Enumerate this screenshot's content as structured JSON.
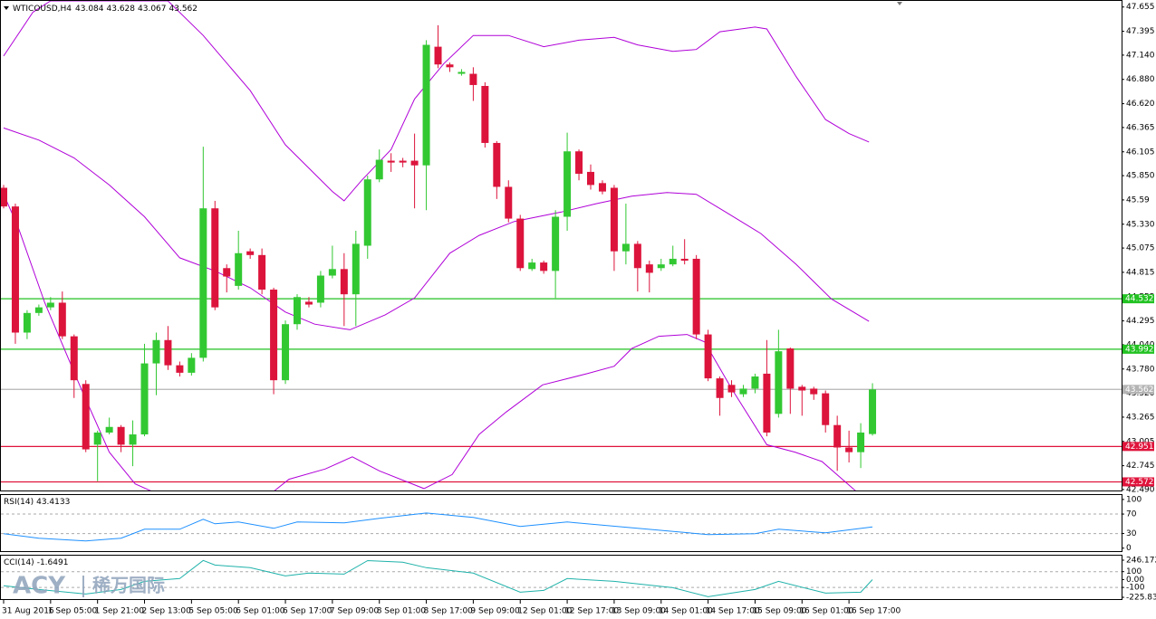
{
  "chart_data": [
    {
      "type": "candlestick",
      "title": "WTICOUSD,H4",
      "up_color": "#32c832",
      "down_color": "#dc143c",
      "categories": [
        "31 Aug 2016",
        null,
        null,
        null,
        "1 Sep 05:00",
        null,
        null,
        null,
        "1 Sep 21:00",
        null,
        null,
        null,
        "2 Sep 13:00",
        null,
        null,
        null,
        "5 Sep 05:00",
        null,
        null,
        null,
        "6 Sep 01:00",
        null,
        null,
        null,
        "6 Sep 17:00",
        null,
        null,
        null,
        "7 Sep 09:00",
        null,
        null,
        null,
        "8 Sep 01:00",
        null,
        null,
        null,
        "8 Sep 17:00",
        null,
        null,
        null,
        "9 Sep 09:00",
        null,
        null,
        null,
        "12 Sep 01:00",
        null,
        null,
        null,
        "12 Sep 17:00",
        null,
        null,
        null,
        "13 Sep 09:00",
        null,
        null,
        null,
        "14 Sep 01:00",
        null,
        null,
        null,
        "14 Sep 17:00",
        null,
        null,
        null,
        "15 Sep 09:00",
        null,
        null,
        null,
        "16 Sep 01:00",
        null,
        null,
        null,
        "16 Sep 17:00",
        null,
        null
      ],
      "open": [
        45.72,
        45.52,
        44.17,
        44.38,
        44.44,
        44.49,
        44.13,
        43.62,
        42.97,
        43.1,
        43.16,
        42.97,
        43.08,
        43.84,
        44.09,
        43.82,
        43.74,
        43.9,
        45.5,
        44.86,
        44.67,
        45.04,
        45.0,
        44.63,
        43.66,
        44.26,
        44.5,
        44.49,
        44.78,
        44.85,
        44.58,
        45.1,
        45.81,
        46.01,
        46.01,
        46.01,
        45.96,
        47.23,
        47.04,
        46.94,
        46.94,
        46.81,
        46.2,
        45.73,
        45.39,
        44.85,
        44.92,
        44.83,
        45.41,
        46.11,
        45.89,
        45.77,
        45.72,
        45.04,
        45.12,
        44.9,
        44.86,
        44.9,
        44.96,
        44.96,
        44.15,
        43.68,
        43.61,
        43.51,
        43.57,
        43.73,
        43.3,
        44.0,
        43.59,
        43.57,
        43.52,
        43.18,
        42.94,
        42.89,
        43.084
      ],
      "high": [
        45.75,
        45.55,
        44.41,
        44.47,
        44.55,
        44.61,
        44.15,
        43.66,
        43.12,
        43.26,
        43.18,
        43.23,
        44.05,
        44.17,
        44.24,
        43.86,
        43.95,
        46.16,
        45.58,
        44.9,
        45.26,
        45.07,
        45.07,
        44.65,
        44.3,
        44.58,
        44.55,
        44.83,
        45.1,
        45.02,
        45.26,
        45.85,
        46.13,
        46.09,
        46.04,
        46.3,
        47.3,
        47.46,
        47.06,
        46.99,
        47.01,
        46.85,
        46.22,
        45.8,
        45.43,
        44.96,
        44.94,
        45.48,
        46.31,
        46.13,
        45.97,
        45.8,
        45.75,
        45.55,
        45.15,
        44.94,
        44.96,
        45.1,
        45.17,
        45.0,
        44.2,
        43.7,
        43.66,
        43.61,
        43.73,
        44.09,
        44.2,
        44.01,
        43.61,
        43.59,
        43.55,
        43.28,
        43.12,
        43.2,
        43.628
      ],
      "low": [
        45.5,
        44.05,
        44.1,
        44.35,
        44.41,
        44.1,
        43.47,
        42.89,
        42.58,
        43.08,
        42.89,
        42.74,
        43.06,
        43.5,
        43.77,
        43.7,
        43.71,
        43.86,
        44.41,
        44.6,
        44.63,
        44.96,
        44.58,
        43.51,
        43.62,
        44.2,
        44.44,
        44.44,
        44.75,
        44.24,
        44.24,
        44.96,
        45.78,
        45.89,
        45.94,
        45.5,
        45.48,
        47.0,
        46.96,
        46.92,
        46.65,
        46.15,
        45.6,
        45.35,
        44.83,
        44.83,
        44.8,
        44.54,
        45.26,
        45.8,
        45.7,
        45.65,
        44.83,
        44.9,
        44.61,
        44.6,
        44.83,
        44.88,
        44.9,
        44.1,
        43.65,
        43.28,
        43.48,
        43.48,
        43.52,
        43.06,
        43.26,
        43.3,
        43.28,
        43.45,
        43.1,
        42.69,
        42.78,
        42.72,
        43.067
      ],
      "close": [
        45.52,
        44.17,
        44.38,
        44.44,
        44.49,
        44.13,
        43.66,
        42.92,
        43.1,
        43.16,
        42.97,
        43.08,
        43.84,
        44.09,
        43.82,
        43.74,
        43.9,
        45.5,
        44.44,
        44.77,
        45.02,
        45.0,
        44.63,
        43.66,
        44.26,
        44.55,
        44.47,
        44.78,
        44.85,
        44.58,
        45.12,
        45.81,
        46.02,
        45.99,
        45.99,
        45.96,
        47.25,
        47.04,
        47.01,
        46.96,
        46.82,
        46.2,
        45.73,
        45.39,
        44.86,
        44.92,
        44.83,
        45.41,
        46.11,
        45.87,
        45.75,
        45.68,
        45.04,
        45.12,
        44.86,
        44.81,
        44.9,
        44.96,
        44.94,
        44.15,
        43.68,
        43.47,
        43.53,
        43.57,
        43.7,
        43.1,
        43.97,
        43.57,
        43.55,
        43.51,
        43.18,
        42.94,
        42.89,
        43.1,
        43.562
      ],
      "series": [
        {
          "color": "#b000d8",
          "x": [
            0,
            2.5,
            4,
            14,
            17,
            21,
            24,
            28,
            29,
            30.5,
            33,
            35,
            37.5,
            40,
            43,
            46,
            49,
            52,
            54,
            57,
            59,
            61,
            64,
            65,
            67.5,
            70,
            72,
            73.7
          ],
          "values": [
            47.13,
            47.6,
            47.72,
            47.72,
            47.35,
            46.76,
            46.18,
            45.68,
            45.58,
            45.8,
            46.13,
            46.67,
            47.05,
            47.35,
            47.35,
            47.23,
            47.3,
            47.33,
            47.25,
            47.18,
            47.2,
            47.39,
            47.44,
            47.42,
            46.91,
            46.45,
            46.3,
            46.21
          ]
        },
        {
          "color": "#b000d8",
          "x": [
            0,
            3,
            6,
            9,
            12,
            15,
            18,
            21,
            24,
            26.5,
            29.5,
            32.5,
            35,
            38,
            40.5,
            43.5,
            47.5,
            50.5,
            53.5,
            56.5,
            59,
            61.5,
            64.5,
            67.5,
            70.5,
            73.7
          ],
          "values": [
            46.36,
            46.23,
            46.04,
            45.75,
            45.41,
            44.97,
            44.83,
            44.65,
            44.39,
            44.26,
            44.2,
            44.36,
            44.54,
            45.02,
            45.21,
            45.36,
            45.46,
            45.55,
            45.63,
            45.67,
            45.65,
            45.46,
            45.23,
            44.9,
            44.53,
            44.29
          ]
        },
        {
          "color": "#b000d8",
          "x": [
            0,
            1.2,
            3.5,
            6.6,
            9,
            11.2,
            13,
            22.8,
            24.3,
            27.4,
            29.7,
            32,
            35.8,
            38.2,
            40.5,
            42.8,
            45.9,
            49.7,
            52,
            53.5,
            55.8,
            58.2,
            59.7,
            62,
            65,
            67.4,
            69.7,
            72.8
          ],
          "values": [
            45.65,
            45.31,
            44.49,
            43.57,
            42.89,
            42.55,
            42.45,
            42.45,
            42.6,
            42.71,
            42.84,
            42.69,
            42.5,
            42.65,
            43.08,
            43.32,
            43.61,
            43.73,
            43.81,
            44.0,
            44.13,
            44.15,
            44.07,
            43.57,
            42.97,
            42.89,
            42.79,
            42.45
          ]
        }
      ],
      "levels": [
        {
          "value": 44.532,
          "color": "#22c222"
        },
        {
          "value": 43.992,
          "color": "#22c222"
        },
        {
          "value": 43.562,
          "color": "#b4b4b4"
        },
        {
          "value": 42.951,
          "color": "#e0143c"
        },
        {
          "value": 42.572,
          "color": "#e0143c"
        }
      ],
      "ylim": [
        42.47,
        47.73
      ],
      "yticks": [
        47.655,
        47.395,
        {
          "value": 47.14,
          "label": "47.140"
        },
        {
          "value": 46.88,
          "label": "46.880"
        },
        {
          "value": 46.62,
          "label": "46.620"
        },
        46.365,
        46.105,
        {
          "value": 45.85,
          "label": "45.850"
        },
        45.59,
        {
          "value": 45.33,
          "label": "45.330"
        },
        45.075,
        44.815,
        44.555,
        44.295,
        {
          "value": 44.04,
          "label": "44.040"
        },
        {
          "value": 43.78,
          "label": "43.780"
        },
        {
          "value": 43.52,
          "label": "43.520"
        },
        43.265,
        43.005,
        42.745,
        {
          "value": 42.49,
          "label": "42.490"
        }
      ]
    },
    {
      "type": "line",
      "title": "RSI(14)",
      "ylim": [
        -8,
        111
      ],
      "yticks": [
        100,
        70,
        30,
        0
      ],
      "levels": [
        70,
        30
      ],
      "series": [
        {
          "color": "#1e90ff",
          "x": [
            0,
            3,
            7,
            10,
            12,
            15,
            17,
            18,
            20,
            23,
            25,
            29,
            32,
            36,
            40,
            44,
            48,
            54,
            60,
            64,
            66,
            70,
            74
          ],
          "values": [
            29.6,
            20.4,
            14.8,
            20.4,
            38.9,
            38.9,
            59.3,
            50,
            53.7,
            40.7,
            53.7,
            51.9,
            61.1,
            72.2,
            63,
            44.4,
            53.7,
            40.7,
            27.8,
            29.6,
            38.9,
            31.5,
            43.4133
          ]
        }
      ]
    },
    {
      "type": "line",
      "title": "CCI(14)",
      "ylim": [
        -260,
        315
      ],
      "yticks": [
        246.172,
        100,
        {
          "value": 0,
          "label": "0.00"
        },
        -100,
        -225.832
      ],
      "levels": [
        100,
        -100
      ],
      "series": [
        {
          "color": "#20b2aa",
          "x": [
            0,
            3,
            7,
            10,
            12,
            15,
            17,
            18,
            21,
            24,
            26,
            29,
            31,
            34,
            36,
            40,
            44,
            46,
            48,
            52,
            57,
            60,
            64,
            66,
            70,
            73,
            74
          ],
          "values": [
            -80,
            -127,
            -184,
            -127,
            -23,
            12,
            242,
            184,
            150,
            46,
            81,
            69,
            240,
            219,
            150,
            81,
            -161,
            -138,
            12,
            -23,
            -104,
            -219,
            -127,
            -23,
            -173,
            -161,
            -1.6491
          ]
        }
      ]
    }
  ],
  "watermark": {
    "brand": "ACY",
    "name": "稀万国际"
  }
}
